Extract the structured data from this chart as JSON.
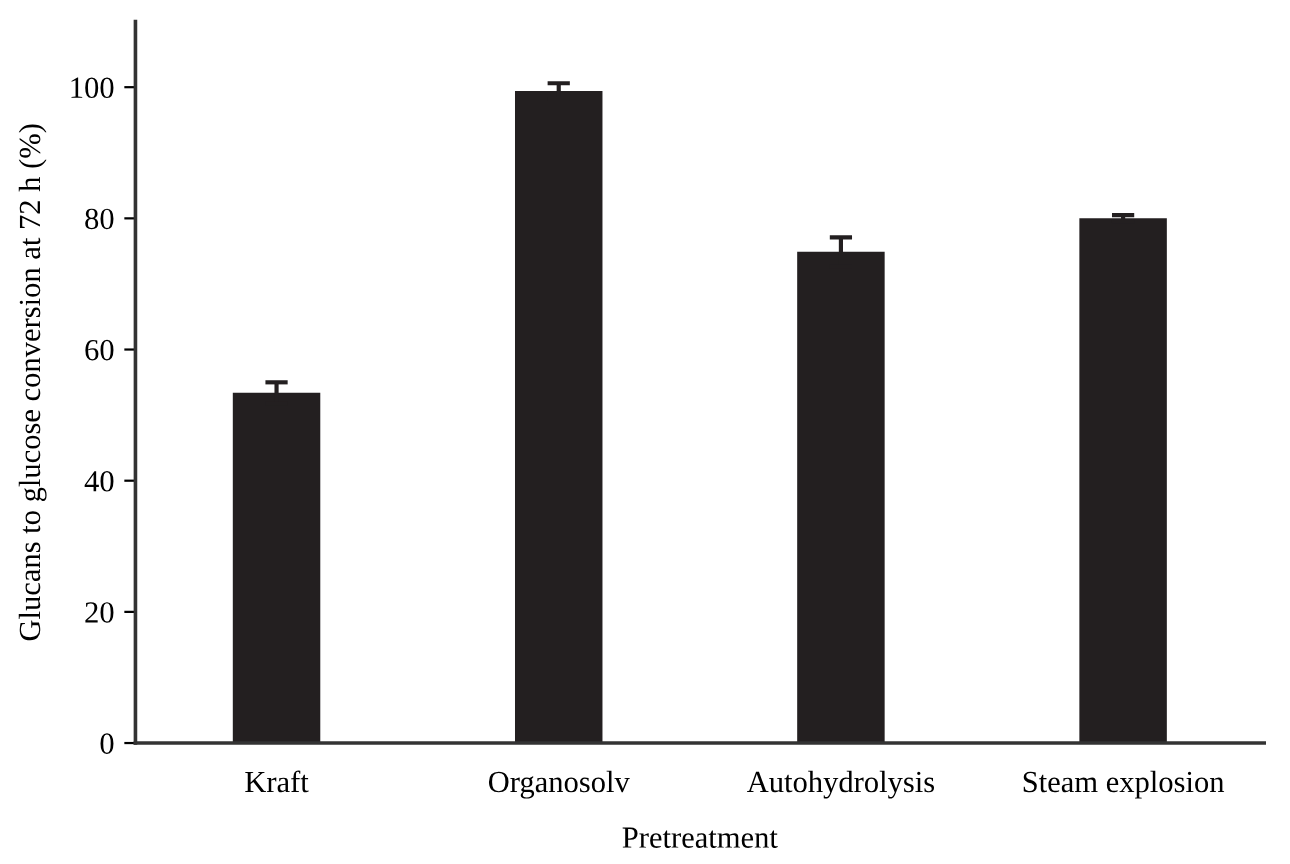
{
  "chart_data": {
    "type": "bar",
    "xlabel": "Pretreatment",
    "ylabel": "Glucans to glucose conversion at 72 h (%)",
    "categories": [
      "Kraft",
      "Organosolv",
      "Autohydrolysis",
      "Steam explosion"
    ],
    "values": [
      53.4,
      99.4,
      74.9,
      80.0
    ],
    "errors": [
      1.6,
      1.2,
      2.2,
      0.5
    ],
    "color": "#231f20",
    "ylim": [
      0,
      110
    ],
    "yticks": [
      0,
      20,
      40,
      60,
      80,
      100
    ],
    "grid": false
  }
}
